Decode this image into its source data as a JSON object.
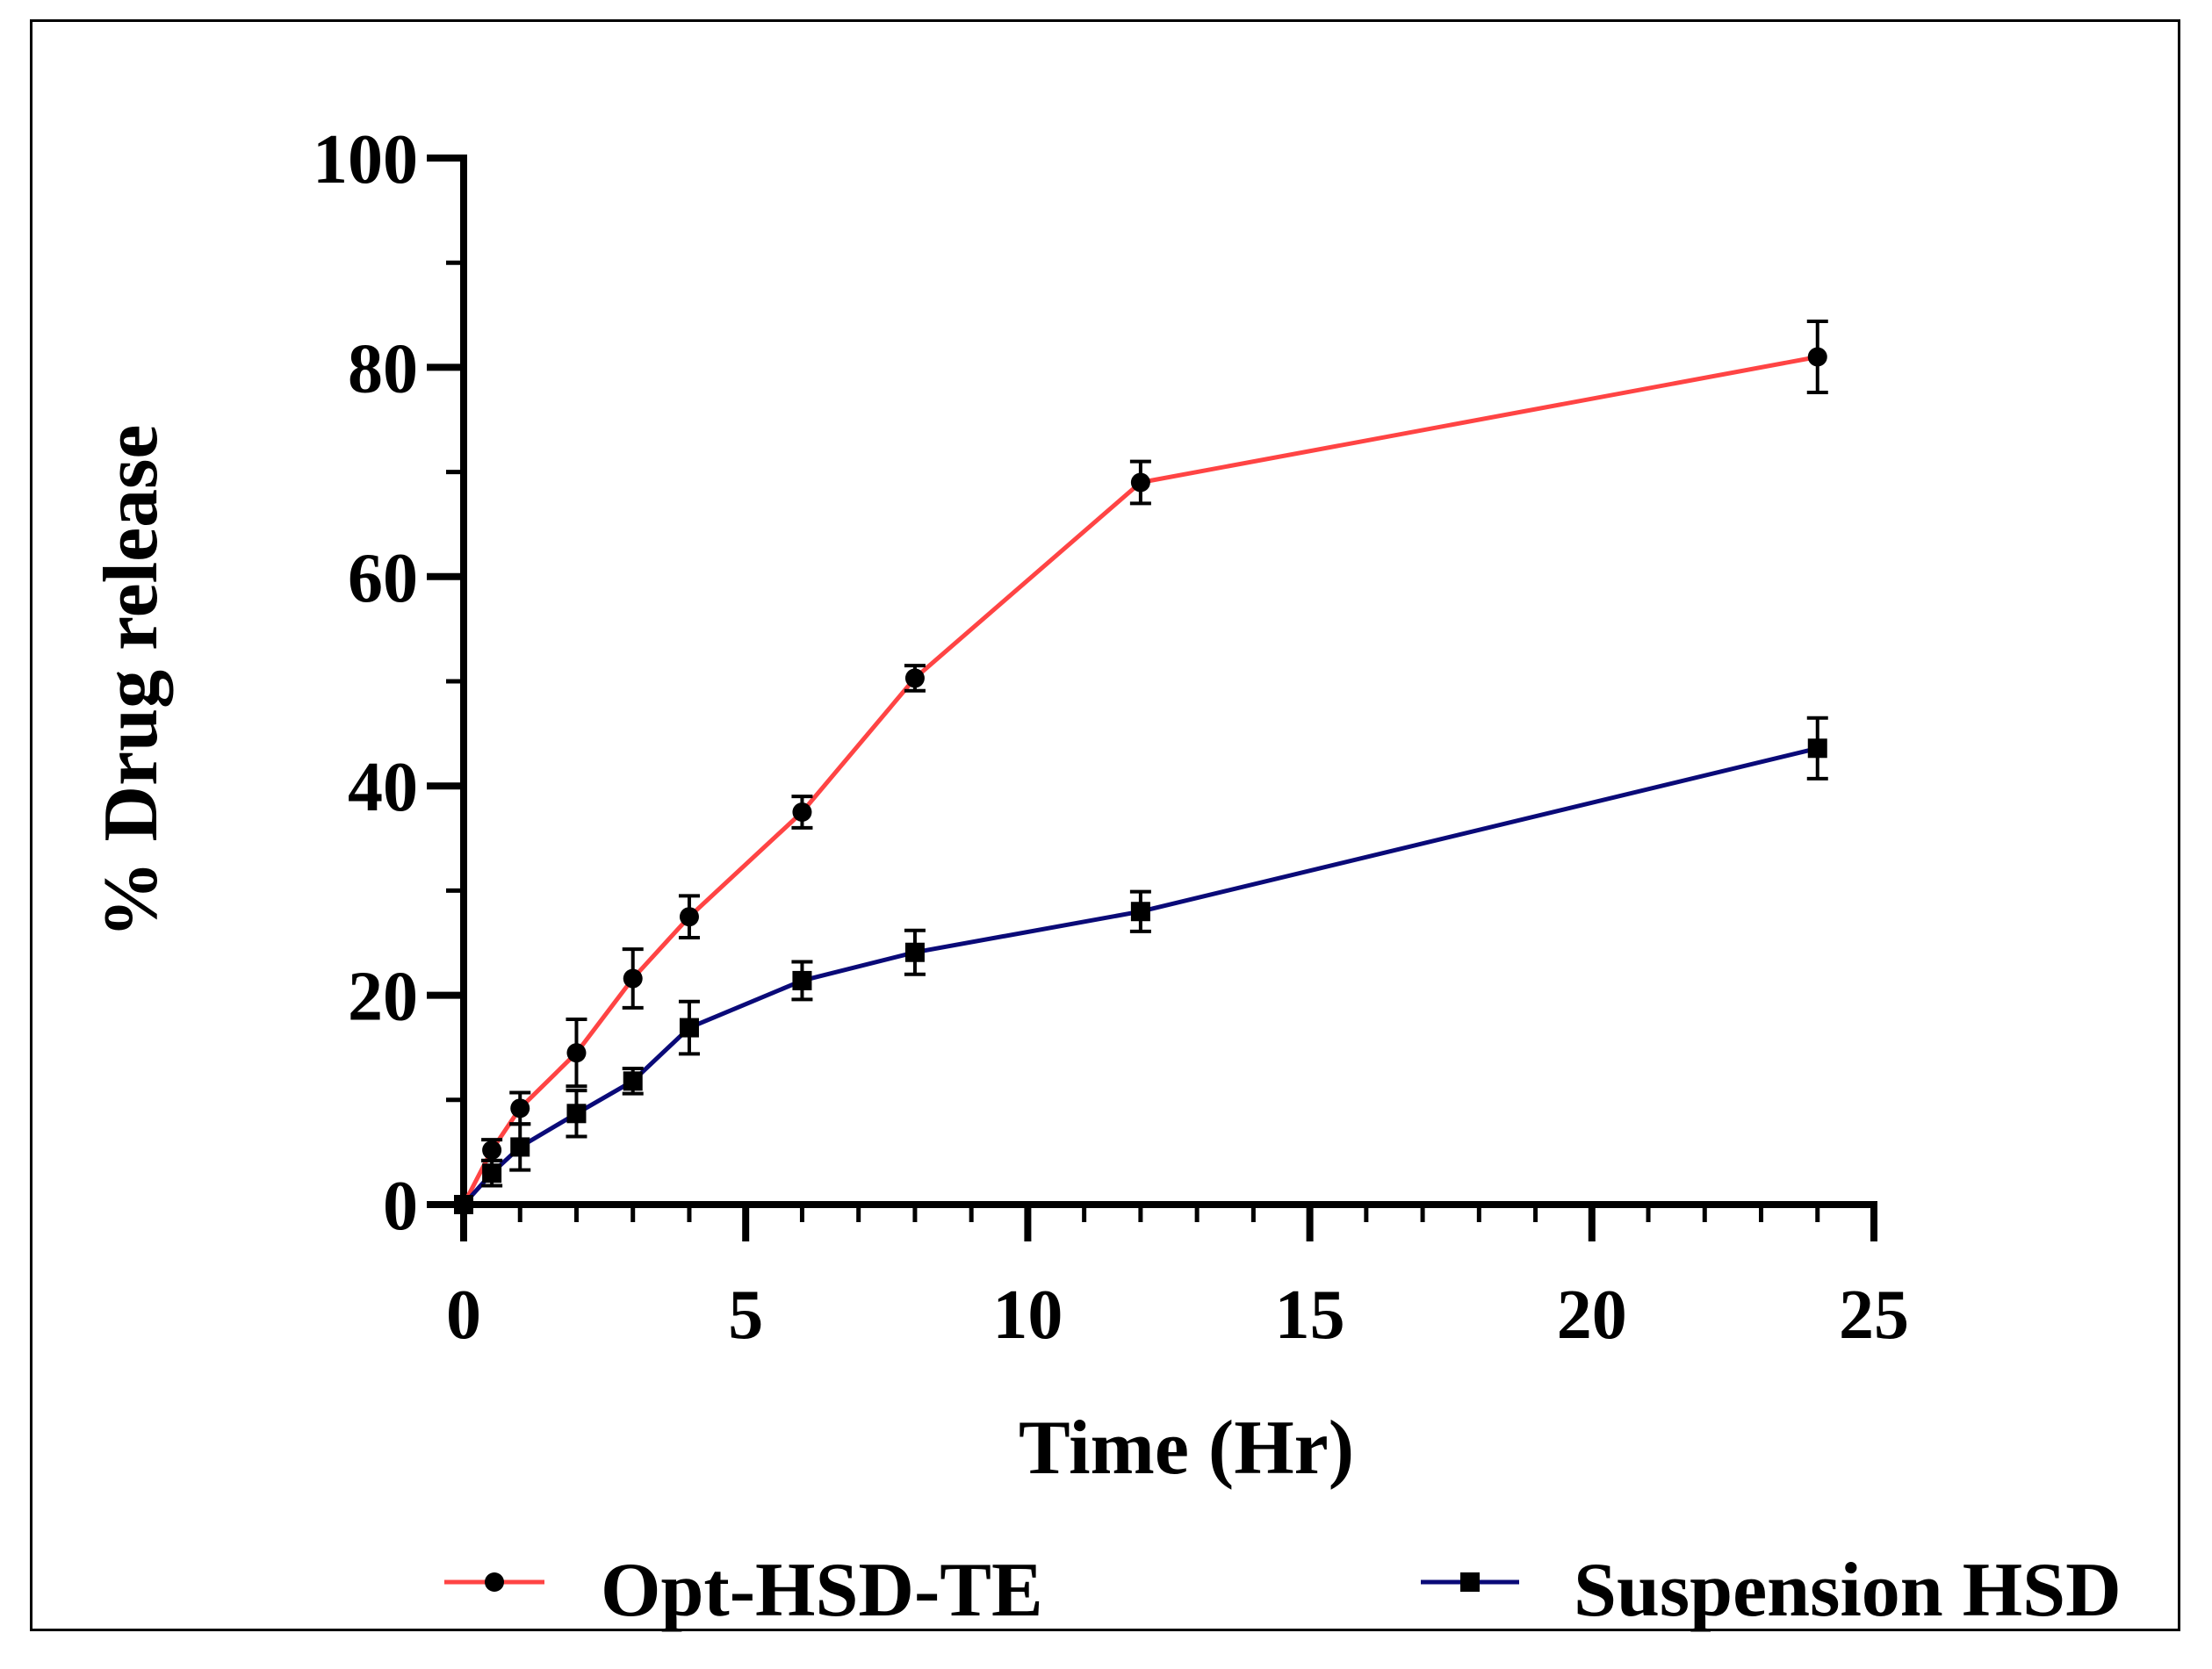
{
  "chart_data": {
    "type": "line",
    "title": "",
    "xlabel": "Time (Hr)",
    "ylabel": "% Drug release",
    "xlim": [
      0,
      25
    ],
    "ylim": [
      0,
      100
    ],
    "x_ticks": [
      0,
      5,
      10,
      15,
      20,
      25
    ],
    "y_ticks": [
      0,
      20,
      40,
      60,
      80,
      100
    ],
    "x_minor_step": 1,
    "y_minor_step": 10,
    "grid": false,
    "legend_position": "bottom",
    "series": [
      {
        "name": "Opt-HSD-TE",
        "color": "#ff4444",
        "marker": "circle",
        "x": [
          0,
          0.5,
          1,
          2,
          3,
          4,
          6,
          8,
          12,
          24
        ],
        "y": [
          0,
          5.2,
          9.2,
          14.5,
          21.6,
          27.5,
          37.5,
          50.3,
          69.0,
          81.0
        ],
        "err": [
          0.3,
          1.0,
          1.5,
          3.2,
          2.8,
          2.0,
          1.5,
          1.2,
          2.0,
          3.4
        ]
      },
      {
        "name": "Suspension HSD",
        "color": "#0a0a78",
        "marker": "square",
        "x": [
          0,
          0.5,
          1,
          2,
          3,
          4,
          6,
          8,
          12,
          24
        ],
        "y": [
          0,
          3.0,
          5.5,
          8.7,
          11.8,
          16.9,
          21.4,
          24.1,
          28.0,
          43.6
        ],
        "err": [
          0.3,
          1.2,
          2.2,
          2.2,
          1.2,
          2.5,
          1.8,
          2.1,
          1.9,
          2.9
        ]
      }
    ]
  }
}
